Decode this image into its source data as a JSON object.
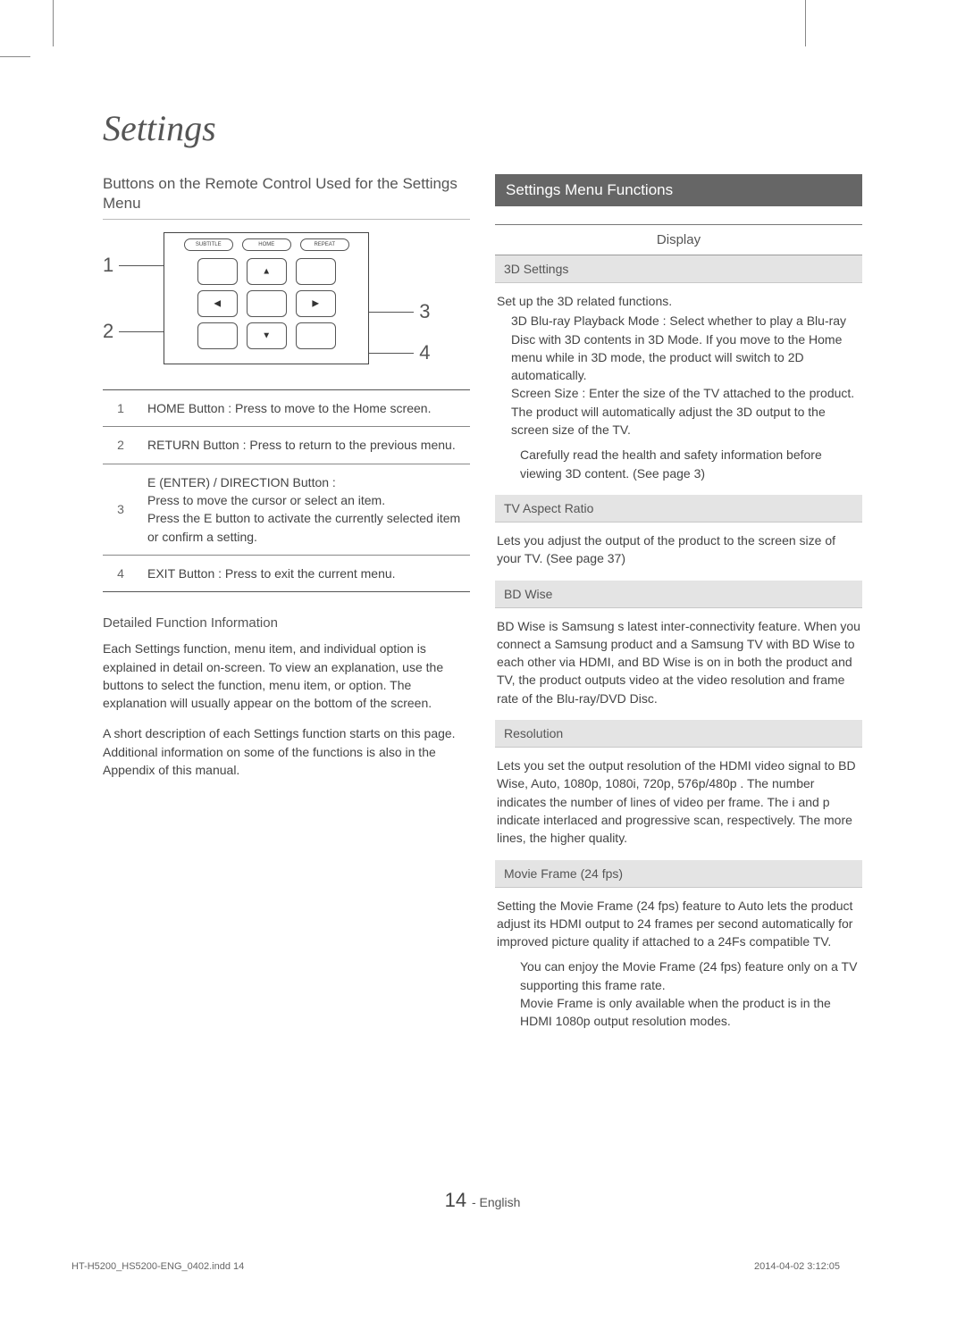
{
  "page_title": "Settings",
  "left": {
    "heading": "Buttons on the Remote Control Used for the Settings Menu",
    "remote": {
      "top_labels": [
        "SUBTITLE",
        "HOME",
        "REPEAT"
      ],
      "callouts": {
        "n1": "1",
        "n2": "2",
        "n3": "3",
        "n4": "4"
      }
    },
    "table": [
      {
        "num": "1",
        "text": "HOME Button : Press to move to the Home screen."
      },
      {
        "num": "2",
        "text": "RETURN Button : Press to return to the previous menu."
      },
      {
        "num": "3",
        "text": "E   (ENTER) / DIRECTION Button :\nPress          to move the cursor or select an item.\nPress the E   button to activate the currently selected item or confirm a setting."
      },
      {
        "num": "4",
        "text": "EXIT Button : Press to exit the current menu."
      }
    ],
    "detail_head": "Detailed Function Information",
    "detail_p1": "Each Settings  function, menu item, and individual option is explained in detail on-screen. To view an explanation, use the       buttons to select the function, menu item, or option. The explanation will usually appear on the bottom of the screen.",
    "detail_p2": "A short description of each Settings  function starts on this page. Additional information on some of the functions is also in the Appendix of this manual."
  },
  "right": {
    "bar_title": "Settings Menu Functions",
    "display_head": "Display",
    "items": [
      {
        "title": "3D Settings",
        "body": "Set up the 3D related functions.",
        "sub": "3D Blu-ray Playback Mode  : Select whether to play a Blu-ray Disc with 3D contents in 3D Mode. If you move to the Home menu while in 3D mode, the product will switch to 2D automatically.\nScreen Size : Enter the size of the TV attached to the product. The product will automatically adjust the 3D output to the screen size of the TV.",
        "note": "Carefully read the health and safety information before viewing 3D content. (See page 3)"
      },
      {
        "title": "TV Aspect Ratio",
        "body": "Lets you adjust the output of the product to the screen size of your TV. (See page 37)"
      },
      {
        "title": "BD Wise",
        "body": "BD Wise is Samsung s latest inter-connectivity feature. When you connect a Samsung product and a Samsung TV with BD Wise to each other via HDMI, and BD Wise is on in both the product and TV, the product outputs video at the video resolution and frame rate of the Blu-ray/DVD Disc."
      },
      {
        "title": "Resolution",
        "body": "Lets you set the output resolution of the HDMI video signal to BD Wise, Auto, 1080p, 1080i, 720p, 576p/480p . The number indicates the number of lines of video per frame. The i and p indicate interlaced and progressive scan, respectively. The more lines, the higher quality."
      },
      {
        "title": "Movie Frame (24 fps)",
        "body": "Setting the Movie Frame (24 fps)  feature to Auto lets the product adjust its HDMI output to 24 frames per second automatically for improved picture quality if attached to a 24Fs compatible TV.",
        "note": "You can enjoy the Movie Frame (24 fps)  feature only on a TV supporting this frame rate.\nMovie Frame is only available when the product is in the HDMI 1080p output resolution modes."
      }
    ]
  },
  "footer": {
    "page_num": "14",
    "lang": "- English"
  },
  "meta": {
    "indd": "HT-H5200_HS5200-ENG_0402.indd   14",
    "timestamp": "2014-04-02    3:12:05"
  },
  "colors": {
    "bar_bg": "#666666",
    "gray_bg": "#e4e4e4",
    "text": "#444444"
  }
}
